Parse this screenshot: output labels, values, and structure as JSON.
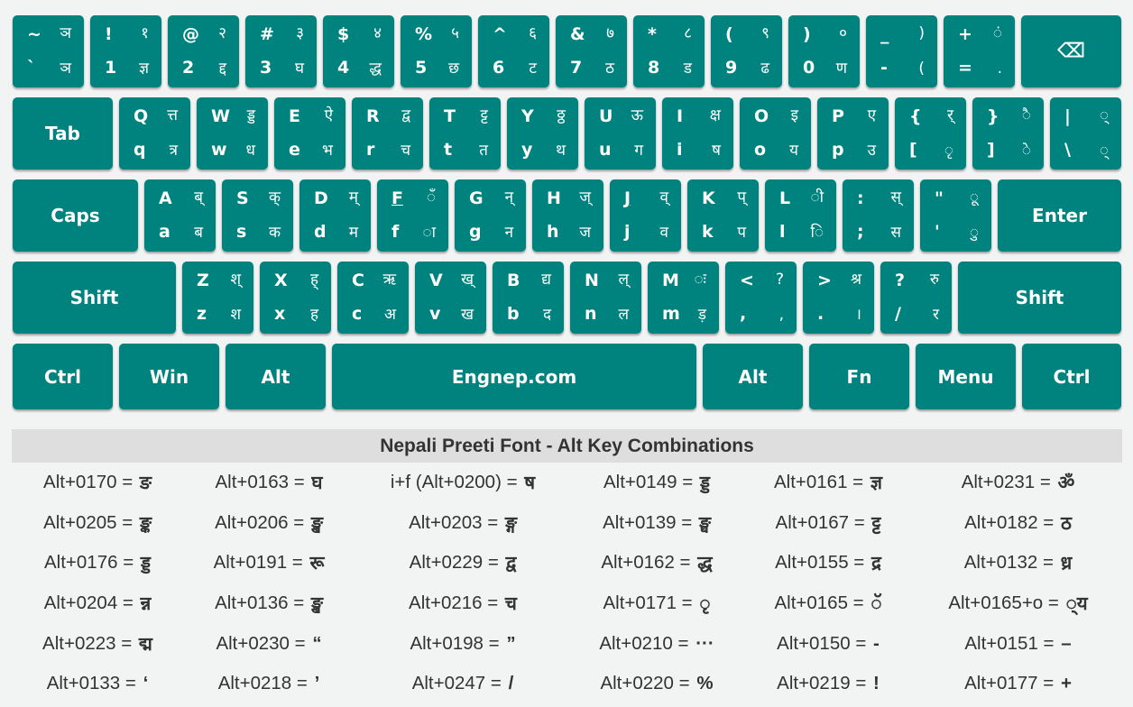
{
  "keyboard": {
    "row1": [
      {
        "name": "backtick",
        "tl": "~",
        "tr": "ञ",
        "bl": "`",
        "br": "ञ"
      },
      {
        "name": "1",
        "tl": "!",
        "tr": "१",
        "bl": "1",
        "br": "ज्ञ"
      },
      {
        "name": "2",
        "tl": "@",
        "tr": "२",
        "bl": "2",
        "br": "द्द"
      },
      {
        "name": "3",
        "tl": "#",
        "tr": "३",
        "bl": "3",
        "br": "घ"
      },
      {
        "name": "4",
        "tl": "$",
        "tr": "४",
        "bl": "4",
        "br": "द्ध"
      },
      {
        "name": "5",
        "tl": "%",
        "tr": "५",
        "bl": "5",
        "br": "छ"
      },
      {
        "name": "6",
        "tl": "^",
        "tr": "६",
        "bl": "6",
        "br": "ट"
      },
      {
        "name": "7",
        "tl": "&",
        "tr": "७",
        "bl": "7",
        "br": "ठ"
      },
      {
        "name": "8",
        "tl": "*",
        "tr": "८",
        "bl": "8",
        "br": "ड"
      },
      {
        "name": "9",
        "tl": "(",
        "tr": "९",
        "bl": "9",
        "br": "ढ"
      },
      {
        "name": "0",
        "tl": ")",
        "tr": "०",
        "bl": "0",
        "br": "ण"
      },
      {
        "name": "minus",
        "tl": "_",
        "tr": ")",
        "bl": "-",
        "br": "("
      },
      {
        "name": "equals",
        "tl": "+",
        "tr": "ं",
        "bl": "=",
        "br": "."
      }
    ],
    "backspace": "⌫",
    "tab": "Tab",
    "row2": [
      {
        "name": "q",
        "tl": "Q",
        "tr": "त्त",
        "bl": "q",
        "br": "त्र"
      },
      {
        "name": "w",
        "tl": "W",
        "tr": "ड्ड",
        "bl": "w",
        "br": "ध"
      },
      {
        "name": "e",
        "tl": "E",
        "tr": "ऐ",
        "bl": "e",
        "br": "भ"
      },
      {
        "name": "r",
        "tl": "R",
        "tr": "द्व",
        "bl": "r",
        "br": "च"
      },
      {
        "name": "t",
        "tl": "T",
        "tr": "ट्ट",
        "bl": "t",
        "br": "त"
      },
      {
        "name": "y",
        "tl": "Y",
        "tr": "ठ्ठ",
        "bl": "y",
        "br": "थ"
      },
      {
        "name": "u",
        "tl": "U",
        "tr": "ऊ",
        "bl": "u",
        "br": "ग"
      },
      {
        "name": "i",
        "tl": "I",
        "tr": "क्ष",
        "bl": "i",
        "br": "ष"
      },
      {
        "name": "o",
        "tl": "O",
        "tr": "इ",
        "bl": "o",
        "br": "य"
      },
      {
        "name": "p",
        "tl": "P",
        "tr": "ए",
        "bl": "p",
        "br": "उ"
      },
      {
        "name": "bracket-left",
        "tl": "{",
        "tr": "र्",
        "bl": "[",
        "br": "ृ"
      },
      {
        "name": "bracket-right",
        "tl": "}",
        "tr": "ै",
        "bl": "]",
        "br": "े"
      },
      {
        "name": "backslash",
        "tl": "|",
        "tr": "्",
        "bl": "\\",
        "br": "्"
      }
    ],
    "caps": "Caps",
    "row3": [
      {
        "name": "a",
        "tl": "A",
        "tr": "ब्",
        "bl": "a",
        "br": "ब"
      },
      {
        "name": "s",
        "tl": "S",
        "tr": "क्",
        "bl": "s",
        "br": "क"
      },
      {
        "name": "d",
        "tl": "D",
        "tr": "म्",
        "bl": "d",
        "br": "म"
      },
      {
        "name": "f",
        "tl": "F",
        "tr": "ँ",
        "bl": "f",
        "br": "ा",
        "u": true
      },
      {
        "name": "g",
        "tl": "G",
        "tr": "न्",
        "bl": "g",
        "br": "न"
      },
      {
        "name": "h",
        "tl": "H",
        "tr": "ज्",
        "bl": "h",
        "br": "ज"
      },
      {
        "name": "j",
        "tl": "J",
        "tr": "व्",
        "bl": "j",
        "br": "व",
        "u": true
      },
      {
        "name": "k",
        "tl": "K",
        "tr": "प्",
        "bl": "k",
        "br": "प"
      },
      {
        "name": "l",
        "tl": "L",
        "tr": "ी",
        "bl": "l",
        "br": "ि"
      },
      {
        "name": "semicolon",
        "tl": ":",
        "tr": "स्",
        "bl": ";",
        "br": "स"
      },
      {
        "name": "quote",
        "tl": "\"",
        "tr": "ू",
        "bl": "'",
        "br": "ु"
      }
    ],
    "enter": "Enter",
    "shift_left": "Shift",
    "row4": [
      {
        "name": "z",
        "tl": "Z",
        "tr": "श्",
        "bl": "z",
        "br": "श"
      },
      {
        "name": "x",
        "tl": "X",
        "tr": "ह्",
        "bl": "x",
        "br": "ह"
      },
      {
        "name": "c",
        "tl": "C",
        "tr": "ऋ",
        "bl": "c",
        "br": "अ"
      },
      {
        "name": "v",
        "tl": "V",
        "tr": "ख्",
        "bl": "v",
        "br": "ख"
      },
      {
        "name": "b",
        "tl": "B",
        "tr": "द्य",
        "bl": "b",
        "br": "द"
      },
      {
        "name": "n",
        "tl": "N",
        "tr": "ल्",
        "bl": "n",
        "br": "ल"
      },
      {
        "name": "m",
        "tl": "M",
        "tr": "ः",
        "bl": "m",
        "br": "ड़"
      },
      {
        "name": "comma",
        "tl": "<",
        "tr": "?",
        "bl": ",",
        "br": ","
      },
      {
        "name": "period",
        "tl": ">",
        "tr": "श्र",
        "bl": ".",
        "br": "।"
      },
      {
        "name": "slash",
        "tl": "?",
        "tr": "रु",
        "bl": "/",
        "br": "र"
      }
    ],
    "shift_right": "Shift",
    "row5": [
      {
        "name": "ctrl-left",
        "label": "Ctrl"
      },
      {
        "name": "win",
        "label": "Win"
      },
      {
        "name": "alt-left",
        "label": "Alt"
      },
      {
        "name": "space",
        "label": "Engnep.com"
      },
      {
        "name": "alt-right",
        "label": "Alt"
      },
      {
        "name": "fn",
        "label": "Fn"
      },
      {
        "name": "menu",
        "label": "Menu"
      },
      {
        "name": "ctrl-right",
        "label": "Ctrl"
      }
    ]
  },
  "table": {
    "title": "Nepali Preeti Font - Alt Key Combinations",
    "rows": [
      [
        {
          "code": "Alt+0170 =",
          "ch": "ङ"
        },
        {
          "code": "Alt+0163 =",
          "ch": "घ"
        },
        {
          "code": "i+f (Alt+0200) =",
          "ch": "ष"
        },
        {
          "code": "Alt+0149 =",
          "ch": "ड्ड"
        },
        {
          "code": "Alt+0161 =",
          "ch": "ज्ञ"
        },
        {
          "code": "Alt+0231 =",
          "ch": "ॐ"
        }
      ],
      [
        {
          "code": "Alt+0205 =",
          "ch": "ङ्क"
        },
        {
          "code": "Alt+0206 =",
          "ch": "ङ्ख"
        },
        {
          "code": "Alt+0203 =",
          "ch": "ङ्ग"
        },
        {
          "code": "Alt+0139 =",
          "ch": "ङ्घ"
        },
        {
          "code": "Alt+0167 =",
          "ch": "ट्ट"
        },
        {
          "code": "Alt+0182 =",
          "ch": "ठ"
        }
      ],
      [
        {
          "code": "Alt+0176 =",
          "ch": "ड्ड"
        },
        {
          "code": "Alt+0191 =",
          "ch": "रू"
        },
        {
          "code": "Alt+0229 =",
          "ch": "द्व"
        },
        {
          "code": "Alt+0162 =",
          "ch": "द्ध"
        },
        {
          "code": "Alt+0155 =",
          "ch": "द्र"
        },
        {
          "code": "Alt+0132 =",
          "ch": "ध्र"
        }
      ],
      [
        {
          "code": "Alt+0204 =",
          "ch": "न्न"
        },
        {
          "code": "Alt+0136 =",
          "ch": "ङ्ख"
        },
        {
          "code": "Alt+0216 =",
          "ch": "च"
        },
        {
          "code": "Alt+0171 =",
          "ch": "ृ"
        },
        {
          "code": "Alt+0165 =",
          "ch": "ॅ"
        },
        {
          "code": "Alt+0165+o =",
          "ch": "्य"
        }
      ],
      [
        {
          "code": "Alt+0223 =",
          "ch": "द्म"
        },
        {
          "code": "Alt+0230 =",
          "ch": "“"
        },
        {
          "code": "Alt+0198 =",
          "ch": "”"
        },
        {
          "code": "Alt+0210 =",
          "ch": "···"
        },
        {
          "code": "Alt+0150 =",
          "ch": "-"
        },
        {
          "code": "Alt+0151 =",
          "ch": "–"
        }
      ],
      [
        {
          "code": "Alt+0133 =",
          "ch": "‘"
        },
        {
          "code": "Alt+0218 =",
          "ch": "’"
        },
        {
          "code": "Alt+0247 =",
          "ch": "/"
        },
        {
          "code": "Alt+0220 =",
          "ch": "%"
        },
        {
          "code": "Alt+0219 =",
          "ch": "!"
        },
        {
          "code": "Alt+0177 =",
          "ch": "+"
        }
      ]
    ]
  }
}
